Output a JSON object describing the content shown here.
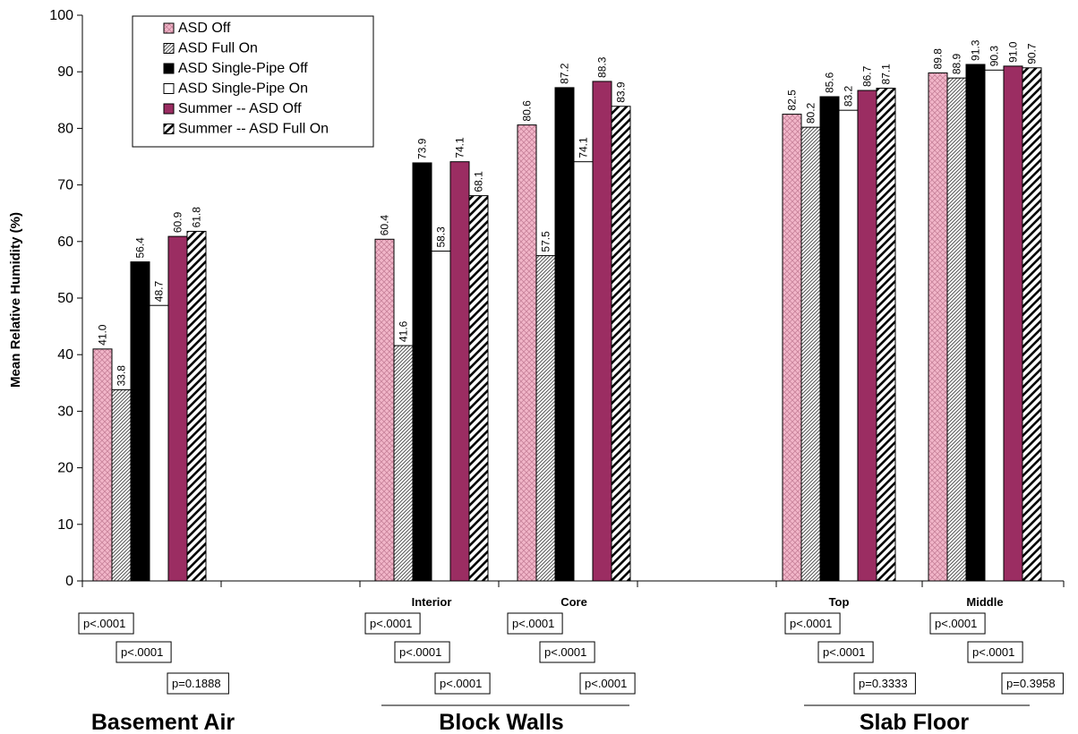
{
  "chart_data": {
    "type": "bar",
    "title": "",
    "xlabel": "",
    "ylabel": "Mean Relative Humidity (%)",
    "ylim": [
      0,
      100
    ],
    "yticks": [
      0,
      10,
      20,
      30,
      40,
      50,
      60,
      70,
      80,
      90,
      100
    ],
    "grid": false,
    "legend_position": "top-left",
    "categories": [
      "",
      "Interior",
      "Core",
      "Top",
      "Middle"
    ],
    "groups": [
      {
        "label": "Basement Air",
        "categories": [
          ""
        ]
      },
      {
        "label": "Block Walls",
        "categories": [
          "Interior",
          "Core"
        ]
      },
      {
        "label": "Slab Floor",
        "categories": [
          "Top",
          "Middle"
        ]
      }
    ],
    "series": [
      {
        "name": "ASD Off",
        "values": [
          41.0,
          60.4,
          80.6,
          82.5,
          89.8
        ],
        "labels": [
          "41.0",
          "60.4",
          "80.6",
          "82.5",
          "89.8"
        ],
        "fill": "#f2b6c9",
        "pattern": "crosshatch"
      },
      {
        "name": "ASD Full On",
        "values": [
          33.8,
          41.6,
          57.5,
          80.2,
          88.9
        ],
        "labels": [
          "33.8",
          "41.6",
          "57.5",
          "80.2",
          "88.9"
        ],
        "fill": "#ffffff",
        "pattern": "fine-diagonal"
      },
      {
        "name": "ASD Single-Pipe Off",
        "values": [
          56.4,
          73.9,
          87.2,
          85.6,
          91.3
        ],
        "labels": [
          "56.4",
          "73.9",
          "87.2",
          "85.6",
          "91.3"
        ],
        "fill": "#000000",
        "pattern": "solid"
      },
      {
        "name": "ASD Single-Pipe On",
        "values": [
          48.7,
          58.3,
          74.1,
          83.2,
          90.3
        ],
        "labels": [
          "48.7",
          "58.3",
          "74.1",
          "83.2",
          "90.3"
        ],
        "fill": "#ffffff",
        "pattern": "solid"
      },
      {
        "name": "Summer -- ASD Off",
        "values": [
          60.9,
          74.1,
          88.3,
          86.7,
          91.0
        ],
        "labels": [
          "60.9",
          "74.1",
          "88.3",
          "86.7",
          "91.0"
        ],
        "fill": "#9b2d62",
        "pattern": "solid"
      },
      {
        "name": "Summer -- ASD Full On",
        "values": [
          61.8,
          68.1,
          83.9,
          87.1,
          90.7
        ],
        "labels": [
          "61.8",
          "68.1",
          "83.9",
          "87.1",
          "90.7"
        ],
        "fill": "#ffffff",
        "pattern": "bold-diagonal"
      }
    ],
    "annotations": [
      {
        "category": 0,
        "row": 0,
        "text": "p<.0001"
      },
      {
        "category": 0,
        "row": 1,
        "text": "p<.0001"
      },
      {
        "category": 0,
        "row": 2,
        "text": "p=0.1888"
      },
      {
        "category": 1,
        "row": 0,
        "text": "p<.0001"
      },
      {
        "category": 1,
        "row": 1,
        "text": "p<.0001"
      },
      {
        "category": 1,
        "row": 2,
        "text": "p<.0001"
      },
      {
        "category": 2,
        "row": 0,
        "text": "p<.0001"
      },
      {
        "category": 2,
        "row": 1,
        "text": "p<.0001"
      },
      {
        "category": 2,
        "row": 2,
        "text": "p<.0001"
      },
      {
        "category": 3,
        "row": 0,
        "text": "p<.0001"
      },
      {
        "category": 3,
        "row": 1,
        "text": "p<.0001"
      },
      {
        "category": 3,
        "row": 2,
        "text": "p=0.3333"
      },
      {
        "category": 4,
        "row": 0,
        "text": "p<.0001"
      },
      {
        "category": 4,
        "row": 1,
        "text": "p<.0001"
      },
      {
        "category": 4,
        "row": 2,
        "text": "p=0.3958"
      }
    ]
  }
}
